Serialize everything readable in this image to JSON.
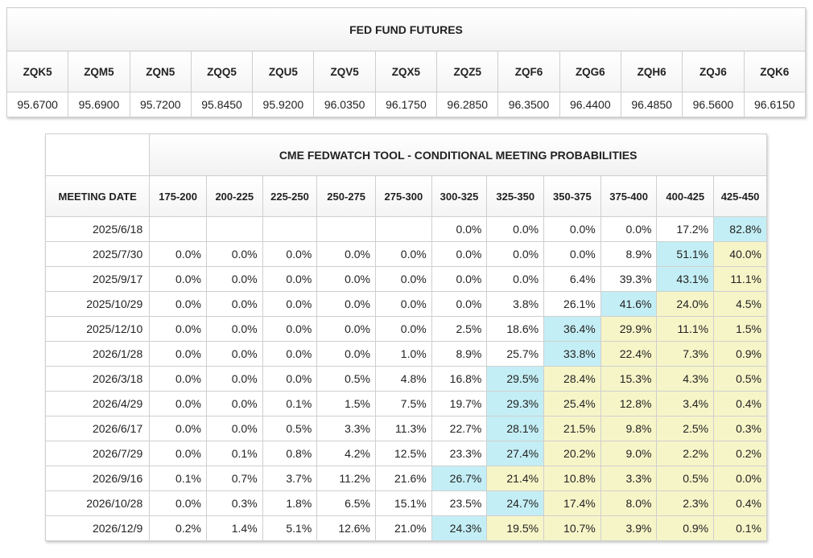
{
  "futures": {
    "title": "FED FUND FUTURES",
    "contracts": [
      "ZQK5",
      "ZQM5",
      "ZQN5",
      "ZQQ5",
      "ZQU5",
      "ZQV5",
      "ZQX5",
      "ZQZ5",
      "ZQF6",
      "ZQG6",
      "ZQH6",
      "ZQJ6",
      "ZQK6"
    ],
    "prices": [
      "95.6700",
      "95.6900",
      "95.7200",
      "95.8450",
      "95.9200",
      "96.0350",
      "96.1750",
      "96.2850",
      "96.3500",
      "96.4400",
      "96.4850",
      "96.5600",
      "96.6150"
    ]
  },
  "probabilities": {
    "title": "CME FEDWATCH TOOL - CONDITIONAL MEETING PROBABILITIES",
    "date_header": "MEETING DATE",
    "ranges": [
      "175-200",
      "200-225",
      "225-250",
      "250-275",
      "275-300",
      "300-325",
      "325-350",
      "350-375",
      "375-400",
      "400-425",
      "425-450"
    ],
    "highlight_colors": {
      "blue": "#c4eef5",
      "yellow": "#f6f5c8"
    },
    "rows": [
      {
        "date": "2025/6/18",
        "values": [
          "",
          "",
          "",
          "",
          "",
          "0.0%",
          "0.0%",
          "0.0%",
          "0.0%",
          "17.2%",
          "82.8%"
        ],
        "highlight": [
          "",
          "",
          "",
          "",
          "",
          "",
          "",
          "",
          "",
          "",
          "blue"
        ]
      },
      {
        "date": "2025/7/30",
        "values": [
          "0.0%",
          "0.0%",
          "0.0%",
          "0.0%",
          "0.0%",
          "0.0%",
          "0.0%",
          "0.0%",
          "8.9%",
          "51.1%",
          "40.0%"
        ],
        "highlight": [
          "",
          "",
          "",
          "",
          "",
          "",
          "",
          "",
          "",
          "blue",
          "yellow"
        ]
      },
      {
        "date": "2025/9/17",
        "values": [
          "0.0%",
          "0.0%",
          "0.0%",
          "0.0%",
          "0.0%",
          "0.0%",
          "0.0%",
          "6.4%",
          "39.3%",
          "43.1%",
          "11.1%"
        ],
        "highlight": [
          "",
          "",
          "",
          "",
          "",
          "",
          "",
          "",
          "",
          "blue",
          "yellow"
        ]
      },
      {
        "date": "2025/10/29",
        "values": [
          "0.0%",
          "0.0%",
          "0.0%",
          "0.0%",
          "0.0%",
          "0.0%",
          "3.8%",
          "26.1%",
          "41.6%",
          "24.0%",
          "4.5%"
        ],
        "highlight": [
          "",
          "",
          "",
          "",
          "",
          "",
          "",
          "",
          "blue",
          "yellow",
          "yellow"
        ]
      },
      {
        "date": "2025/12/10",
        "values": [
          "0.0%",
          "0.0%",
          "0.0%",
          "0.0%",
          "0.0%",
          "2.5%",
          "18.6%",
          "36.4%",
          "29.9%",
          "11.1%",
          "1.5%"
        ],
        "highlight": [
          "",
          "",
          "",
          "",
          "",
          "",
          "",
          "blue",
          "yellow",
          "yellow",
          "yellow"
        ]
      },
      {
        "date": "2026/1/28",
        "values": [
          "0.0%",
          "0.0%",
          "0.0%",
          "0.0%",
          "1.0%",
          "8.9%",
          "25.7%",
          "33.8%",
          "22.4%",
          "7.3%",
          "0.9%"
        ],
        "highlight": [
          "",
          "",
          "",
          "",
          "",
          "",
          "",
          "blue",
          "yellow",
          "yellow",
          "yellow"
        ]
      },
      {
        "date": "2026/3/18",
        "values": [
          "0.0%",
          "0.0%",
          "0.0%",
          "0.5%",
          "4.8%",
          "16.8%",
          "29.5%",
          "28.4%",
          "15.3%",
          "4.3%",
          "0.5%"
        ],
        "highlight": [
          "",
          "",
          "",
          "",
          "",
          "",
          "blue",
          "yellow",
          "yellow",
          "yellow",
          "yellow"
        ]
      },
      {
        "date": "2026/4/29",
        "values": [
          "0.0%",
          "0.0%",
          "0.1%",
          "1.5%",
          "7.5%",
          "19.7%",
          "29.3%",
          "25.4%",
          "12.8%",
          "3.4%",
          "0.4%"
        ],
        "highlight": [
          "",
          "",
          "",
          "",
          "",
          "",
          "blue",
          "yellow",
          "yellow",
          "yellow",
          "yellow"
        ]
      },
      {
        "date": "2026/6/17",
        "values": [
          "0.0%",
          "0.0%",
          "0.5%",
          "3.3%",
          "11.3%",
          "22.7%",
          "28.1%",
          "21.5%",
          "9.8%",
          "2.5%",
          "0.3%"
        ],
        "highlight": [
          "",
          "",
          "",
          "",
          "",
          "",
          "blue",
          "yellow",
          "yellow",
          "yellow",
          "yellow"
        ]
      },
      {
        "date": "2026/7/29",
        "values": [
          "0.0%",
          "0.1%",
          "0.8%",
          "4.2%",
          "12.5%",
          "23.3%",
          "27.4%",
          "20.2%",
          "9.0%",
          "2.2%",
          "0.2%"
        ],
        "highlight": [
          "",
          "",
          "",
          "",
          "",
          "",
          "blue",
          "yellow",
          "yellow",
          "yellow",
          "yellow"
        ]
      },
      {
        "date": "2026/9/16",
        "values": [
          "0.1%",
          "0.7%",
          "3.7%",
          "11.2%",
          "21.6%",
          "26.7%",
          "21.4%",
          "10.8%",
          "3.3%",
          "0.5%",
          "0.0%"
        ],
        "highlight": [
          "",
          "",
          "",
          "",
          "",
          "blue",
          "yellow",
          "yellow",
          "yellow",
          "yellow",
          "yellow"
        ]
      },
      {
        "date": "2026/10/28",
        "values": [
          "0.0%",
          "0.3%",
          "1.8%",
          "6.5%",
          "15.1%",
          "23.5%",
          "24.7%",
          "17.4%",
          "8.0%",
          "2.3%",
          "0.4%"
        ],
        "highlight": [
          "",
          "",
          "",
          "",
          "",
          "",
          "blue",
          "yellow",
          "yellow",
          "yellow",
          "yellow"
        ]
      },
      {
        "date": "2026/12/9",
        "values": [
          "0.2%",
          "1.4%",
          "5.1%",
          "12.6%",
          "21.0%",
          "24.3%",
          "19.5%",
          "10.7%",
          "3.9%",
          "0.9%",
          "0.1%"
        ],
        "highlight": [
          "",
          "",
          "",
          "",
          "",
          "blue",
          "yellow",
          "yellow",
          "yellow",
          "yellow",
          "yellow"
        ]
      }
    ]
  }
}
